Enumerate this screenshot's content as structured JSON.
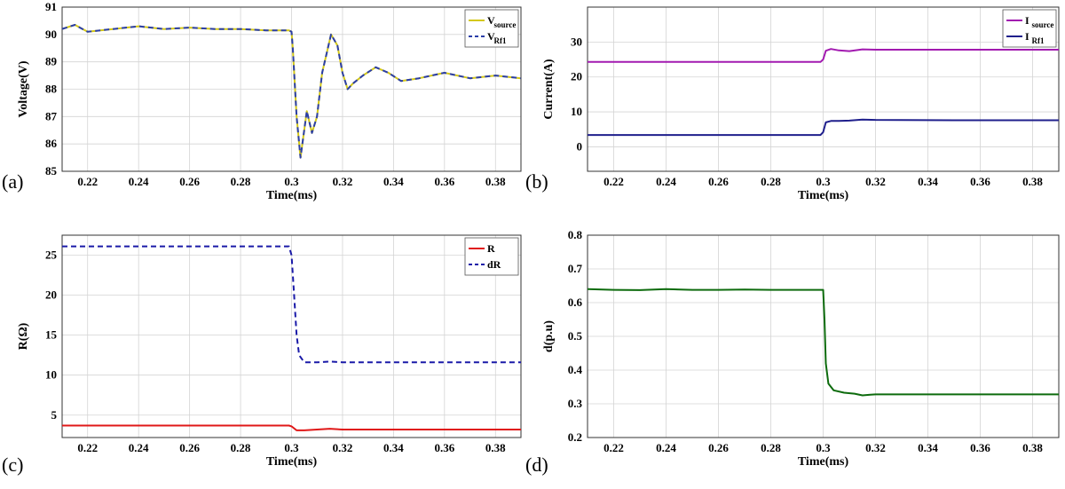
{
  "chart_data": [
    {
      "type": "line",
      "panel_label": "(a)",
      "xlabel": "Time(ms)",
      "ylabel": "Voltage(V)",
      "xlim": [
        0.21,
        0.39
      ],
      "ylim": [
        85,
        91
      ],
      "xticks": [
        0.22,
        0.24,
        0.26,
        0.28,
        0.3,
        0.32,
        0.34,
        0.36,
        0.38
      ],
      "xtick_labels": [
        "0.22",
        "0.24",
        "0.26",
        "0.28",
        "0.3",
        "0.32",
        "0.34",
        "0.36",
        "0.38"
      ],
      "yticks": [
        85,
        86,
        87,
        88,
        89,
        90,
        91
      ],
      "ytick_labels": [
        "85",
        "86",
        "87",
        "88",
        "89",
        "90",
        "91"
      ],
      "legend_position": "top-right",
      "series": [
        {
          "name": "V",
          "sub": "source",
          "color": "#d4c818",
          "dash": "solid",
          "x": [
            0.21,
            0.215,
            0.22,
            0.23,
            0.24,
            0.25,
            0.26,
            0.27,
            0.28,
            0.29,
            0.299,
            0.3,
            0.3005,
            0.302,
            0.3035,
            0.306,
            0.308,
            0.31,
            0.312,
            0.3155,
            0.318,
            0.32,
            0.322,
            0.324,
            0.328,
            0.333,
            0.338,
            0.343,
            0.35,
            0.36,
            0.37,
            0.38,
            0.39
          ],
          "y": [
            90.2,
            90.35,
            90.1,
            90.2,
            90.3,
            90.2,
            90.25,
            90.2,
            90.2,
            90.15,
            90.15,
            90.1,
            89.5,
            87.0,
            85.5,
            87.2,
            86.4,
            87.0,
            88.6,
            90.0,
            89.6,
            88.6,
            88.0,
            88.2,
            88.5,
            88.8,
            88.6,
            88.3,
            88.4,
            88.6,
            88.4,
            88.5,
            88.4
          ]
        },
        {
          "name": "V",
          "sub": "Rf1",
          "color": "#2b3ea8",
          "dash": "dashed",
          "x": [
            0.21,
            0.215,
            0.22,
            0.23,
            0.24,
            0.25,
            0.26,
            0.27,
            0.28,
            0.29,
            0.299,
            0.3,
            0.3005,
            0.302,
            0.3035,
            0.306,
            0.308,
            0.31,
            0.312,
            0.3155,
            0.318,
            0.32,
            0.322,
            0.324,
            0.328,
            0.333,
            0.338,
            0.343,
            0.35,
            0.36,
            0.37,
            0.38,
            0.39
          ],
          "y": [
            90.2,
            90.35,
            90.1,
            90.2,
            90.3,
            90.2,
            90.25,
            90.2,
            90.2,
            90.15,
            90.15,
            90.1,
            89.5,
            87.0,
            85.5,
            87.2,
            86.4,
            87.0,
            88.6,
            90.0,
            89.6,
            88.6,
            88.0,
            88.2,
            88.5,
            88.8,
            88.6,
            88.3,
            88.4,
            88.6,
            88.4,
            88.5,
            88.4
          ]
        }
      ]
    },
    {
      "type": "line",
      "panel_label": "(b)",
      "xlabel": "Time(ms)",
      "ylabel": "Current(A)",
      "xlim": [
        0.21,
        0.39
      ],
      "ylim": [
        -7,
        40
      ],
      "xticks": [
        0.22,
        0.24,
        0.26,
        0.28,
        0.3,
        0.32,
        0.34,
        0.36,
        0.38
      ],
      "xtick_labels": [
        "0.22",
        "0.24",
        "0.26",
        "0.28",
        "0.3",
        "0.32",
        "0.34",
        "0.36",
        "0.38"
      ],
      "yticks": [
        0,
        10,
        20,
        30
      ],
      "ytick_labels": [
        "0",
        "10",
        "20",
        "30"
      ],
      "legend_position": "top-right",
      "series": [
        {
          "name": "I",
          "sub": "source",
          "color": "#a21ab0",
          "dash": "solid",
          "x": [
            0.21,
            0.25,
            0.299,
            0.3,
            0.301,
            0.303,
            0.306,
            0.31,
            0.315,
            0.32,
            0.35,
            0.39
          ],
          "y": [
            24.3,
            24.3,
            24.3,
            25.0,
            27.5,
            28.0,
            27.6,
            27.4,
            27.9,
            27.8,
            27.8,
            27.8
          ]
        },
        {
          "name": "I",
          "sub": "Rf1",
          "color": "#1f1f8c",
          "dash": "solid",
          "x": [
            0.21,
            0.25,
            0.299,
            0.3,
            0.301,
            0.303,
            0.306,
            0.31,
            0.315,
            0.32,
            0.35,
            0.39
          ],
          "y": [
            3.4,
            3.4,
            3.4,
            4.2,
            7.0,
            7.4,
            7.4,
            7.5,
            7.8,
            7.7,
            7.6,
            7.6
          ]
        }
      ]
    },
    {
      "type": "line",
      "panel_label": "(c)",
      "xlabel": "Time(ms)",
      "ylabel": "R(Ω)",
      "xlim": [
        0.21,
        0.39
      ],
      "ylim": [
        2.2,
        27.5
      ],
      "xticks": [
        0.22,
        0.24,
        0.26,
        0.28,
        0.3,
        0.32,
        0.34,
        0.36,
        0.38
      ],
      "xtick_labels": [
        "0.22",
        "0.24",
        "0.26",
        "0.28",
        "0.3",
        "0.32",
        "0.34",
        "0.36",
        "0.38"
      ],
      "yticks": [
        5,
        10,
        15,
        20,
        25
      ],
      "ytick_labels": [
        "5",
        "10",
        "15",
        "20",
        "25"
      ],
      "legend_position": "top-right",
      "series": [
        {
          "name": "R",
          "sub": "",
          "color": "#e01818",
          "dash": "solid",
          "x": [
            0.21,
            0.25,
            0.299,
            0.3,
            0.302,
            0.305,
            0.31,
            0.315,
            0.32,
            0.35,
            0.39
          ],
          "y": [
            3.7,
            3.7,
            3.7,
            3.6,
            3.1,
            3.1,
            3.2,
            3.3,
            3.2,
            3.2,
            3.2
          ]
        },
        {
          "name": "dR",
          "sub": "",
          "color": "#1a1aa8",
          "dash": "dashed",
          "x": [
            0.21,
            0.25,
            0.299,
            0.3,
            0.301,
            0.302,
            0.303,
            0.305,
            0.31,
            0.315,
            0.32,
            0.35,
            0.39
          ],
          "y": [
            26.1,
            26.1,
            26.1,
            25.0,
            20.0,
            15.0,
            12.5,
            11.6,
            11.6,
            11.7,
            11.6,
            11.6,
            11.6
          ]
        }
      ]
    },
    {
      "type": "line",
      "panel_label": "(d)",
      "xlabel": "Time(ms)",
      "ylabel": "d(p.u)",
      "xlim": [
        0.21,
        0.39
      ],
      "ylim": [
        0.2,
        0.8
      ],
      "xticks": [
        0.22,
        0.24,
        0.26,
        0.28,
        0.3,
        0.32,
        0.34,
        0.36,
        0.38
      ],
      "xtick_labels": [
        "0.22",
        "0.24",
        "0.26",
        "0.28",
        "0.3",
        "0.32",
        "0.34",
        "0.36",
        "0.38"
      ],
      "yticks": [
        0.2,
        0.3,
        0.4,
        0.5,
        0.6,
        0.7,
        0.8
      ],
      "ytick_labels": [
        "0.2",
        "0.3",
        "0.4",
        "0.5",
        "0.6",
        "0.7",
        "0.8"
      ],
      "legend_position": "none",
      "series": [
        {
          "name": "d",
          "sub": "",
          "color": "#0d6b0d",
          "dash": "solid",
          "x": [
            0.21,
            0.22,
            0.23,
            0.24,
            0.25,
            0.26,
            0.27,
            0.28,
            0.29,
            0.3,
            0.3005,
            0.301,
            0.302,
            0.304,
            0.308,
            0.312,
            0.315,
            0.318,
            0.32,
            0.33,
            0.35,
            0.37,
            0.39
          ],
          "y": [
            0.64,
            0.638,
            0.637,
            0.64,
            0.638,
            0.638,
            0.639,
            0.638,
            0.638,
            0.638,
            0.55,
            0.42,
            0.36,
            0.34,
            0.333,
            0.33,
            0.325,
            0.327,
            0.328,
            0.328,
            0.328,
            0.328,
            0.328
          ]
        }
      ]
    }
  ]
}
